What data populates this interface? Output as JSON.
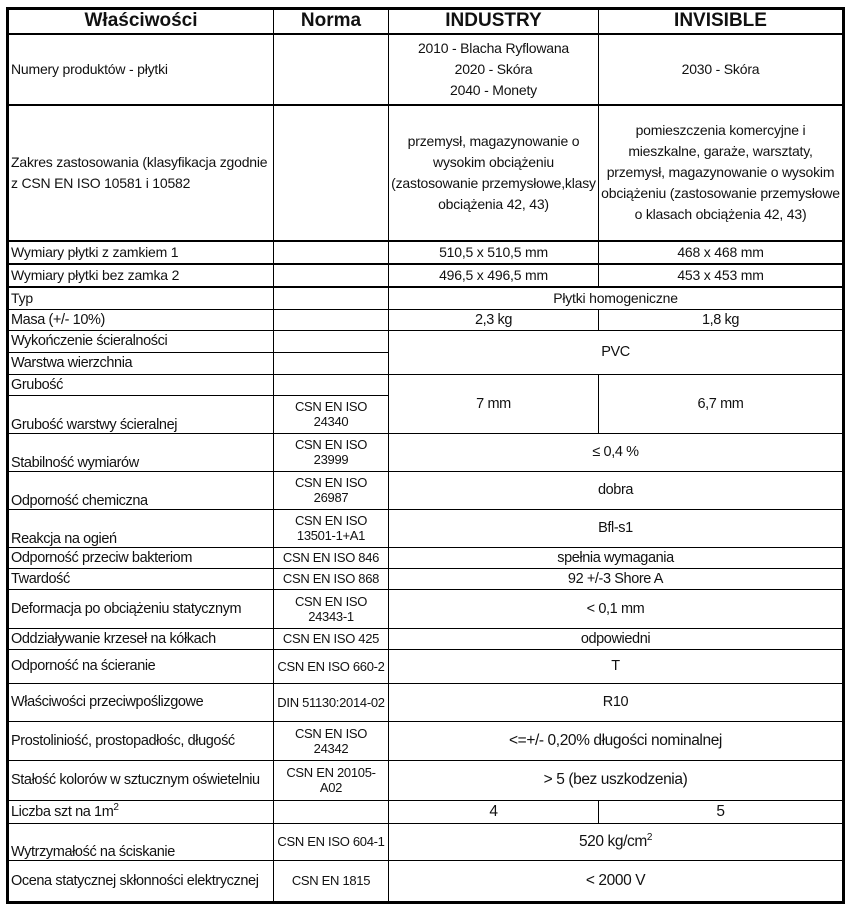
{
  "header": {
    "col1": "Właściwości",
    "col2": "Norma",
    "col3": "INDUSTRY",
    "col4": "INVISIBLE"
  },
  "rows": {
    "numery": {
      "label": "Numery produktów - płytki",
      "industry": [
        "2010 - Blacha Ryflowana",
        "2020 - Skóra",
        "2040 - Monety"
      ],
      "invisible": "2030 - Skóra"
    },
    "zakres": {
      "label": "Zakres zastosowania (klasyfikacja zgodnie z CSN EN ISO 10581 i 10582",
      "industry": "przemysł, magazynowanie o wysokim obciążeniu (zastosowanie przemysłowe,klasy obciążenia 42, 43)",
      "invisible": "pomieszczenia komercyjne i mieszkalne, garaże, warsztaty, przemysł, magazynowanie o wysokim obciążeniu (zastosowanie przemysłowe o klasach obciążenia 42, 43)"
    },
    "wym1": {
      "label": "Wymiary płytki z zamkiem 1",
      "industry": "510,5 x 510,5 mm",
      "invisible": "468 x 468 mm"
    },
    "wym2": {
      "label": "Wymiary płytki bez zamka 2",
      "industry": "496,5 x 496,5 mm",
      "invisible": "453 x 453 mm"
    },
    "typ": {
      "label": "Typ",
      "value": "Płytki homogeniczne"
    },
    "masa": {
      "label": "Masa (+/- 10%)",
      "industry": "2,3 kg",
      "invisible": "1,8 kg"
    },
    "wykonczenie": {
      "label": "Wykończenie ścieralności"
    },
    "warstwa": {
      "label": "Warstwa wierzchnia",
      "value": "PVC"
    },
    "grubosc": {
      "label": "Grubość",
      "industry": "7 mm",
      "invisible": "6,7 mm"
    },
    "grubosc_warstwy": {
      "label": "Grubość warstwy ścieralnej",
      "norma": "CSN EN ISO 24340"
    },
    "stabilnosc": {
      "label": "Stabilność wymiarów",
      "norma": "CSN EN ISO 23999",
      "value": "≤ 0,4 %"
    },
    "chemiczna": {
      "label": "Odporność chemiczna",
      "norma": "CSN EN ISO 26987",
      "value": "dobra"
    },
    "ogien": {
      "label": "Reakcja na ogień",
      "norma": "CSN EN ISO 13501-1+A1",
      "value": "Bfl-s1"
    },
    "bakterie": {
      "label": "Odporność przeciw bakteriom",
      "norma": "CSN EN ISO 846",
      "value": "spełnia wymagania"
    },
    "twardosc": {
      "label": "Twardość",
      "norma": "CSN EN ISO 868",
      "value": "92 +/-3 Shore A"
    },
    "deformacja": {
      "label": "Deformacja po obciążeniu statycznym",
      "norma": "CSN EN ISO 24343-1",
      "value": "< 0,1 mm"
    },
    "krzesla": {
      "label": "Oddziaływanie krzeseł na kółkach",
      "norma": "CSN EN ISO 425",
      "value": "odpowiedni"
    },
    "scieranie": {
      "label": "Odporność na ścieranie",
      "norma": "CSN EN ISO 660-2",
      "value": "T"
    },
    "antyposlizg": {
      "label": "Właściwości przeciwpoślizgowe",
      "norma": "DIN 51130:2014-02",
      "value": "R10"
    },
    "prostoliniowosc": {
      "label": "Prostoliniość, prostopadłośc, długość",
      "norma": "CSN EN ISO 24342",
      "value": "<=+/- 0,20% długości nominalnej"
    },
    "stalosc": {
      "label": "Stałość kolorów w sztucznym oświetelniu",
      "norma": "CSN EN 20105-A02",
      "value": "> 5 (bez uszkodzenia)"
    },
    "liczba": {
      "label": "Liczba szt na 1m",
      "label_sup": "2",
      "industry": "4",
      "invisible": "5"
    },
    "wytrzymalosc": {
      "label": "Wytrzymałość na ściskanie",
      "norma": "CSN EN ISO 604-1",
      "value": "520 kg/cm",
      "value_sup": "2"
    },
    "ocena": {
      "label": "Ocena statycznej skłonności elektrycznej",
      "norma": "CSN EN 1815",
      "value": "< 2000 V"
    }
  }
}
